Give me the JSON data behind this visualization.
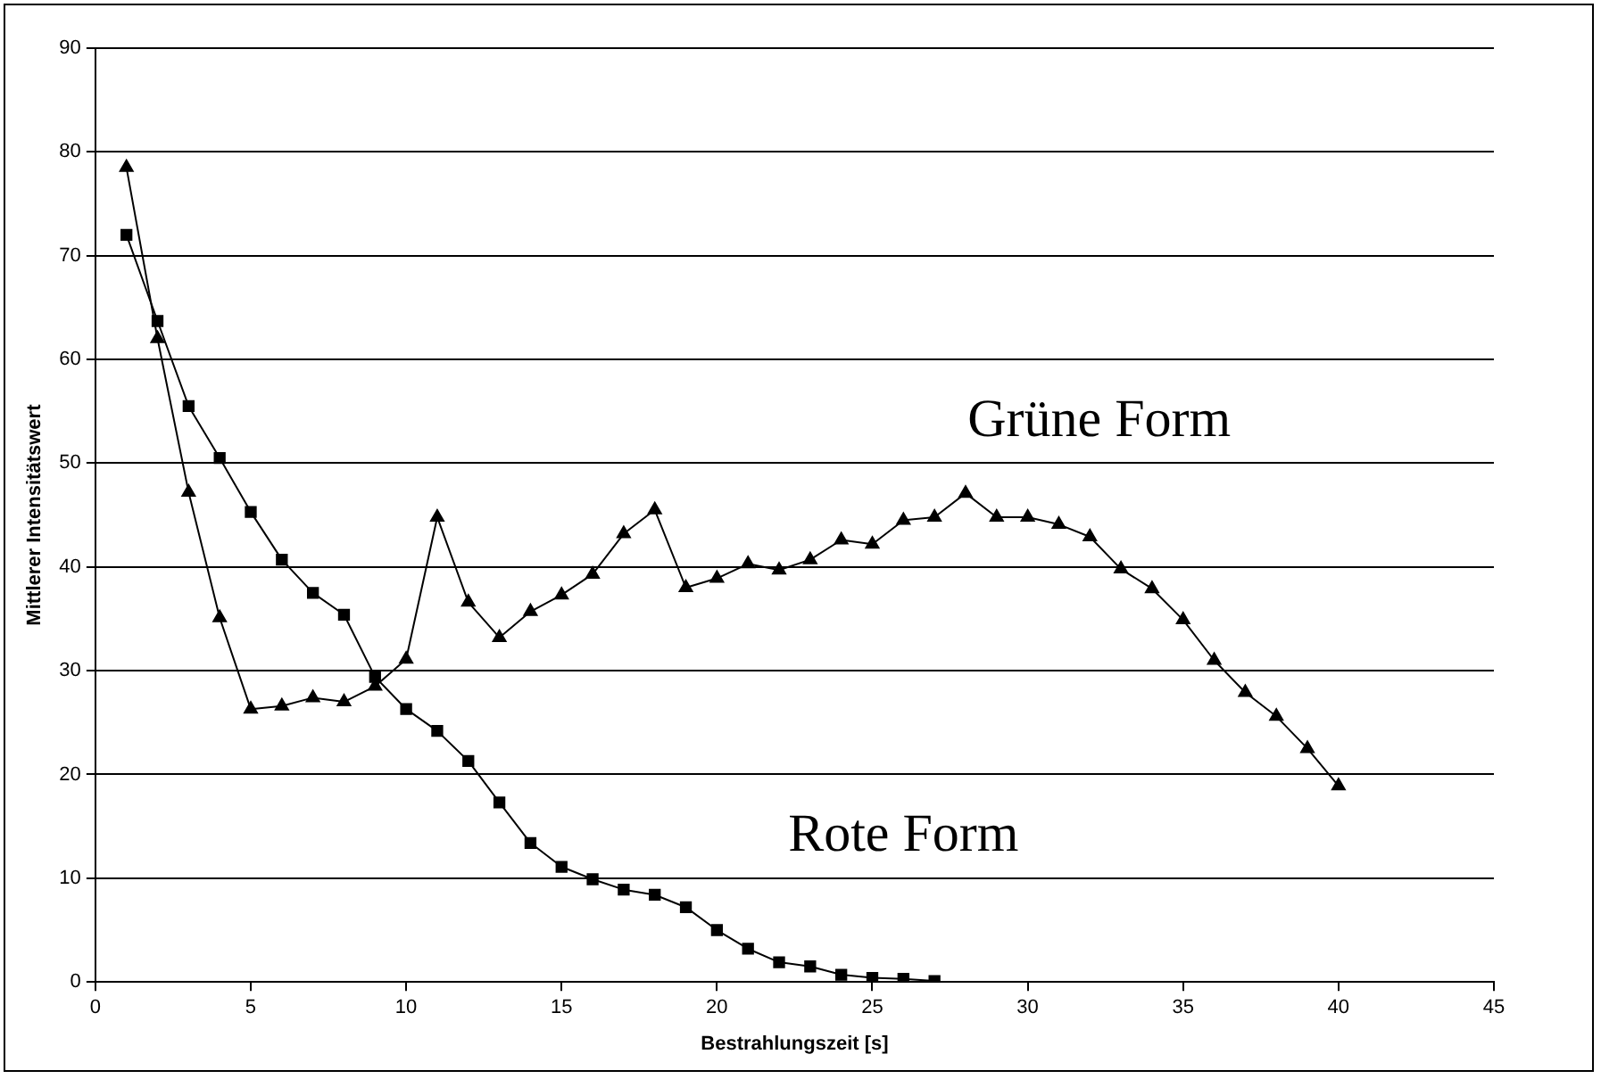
{
  "chart_data": {
    "type": "line",
    "xlabel": "Bestrahlungszeit [s]",
    "ylabel": "Mittlerer Intensitätswert",
    "xlim": [
      0,
      45
    ],
    "xticks": [
      0,
      5,
      10,
      15,
      20,
      25,
      30,
      35,
      40,
      45
    ],
    "ylim": [
      0,
      90
    ],
    "yticks": [
      0,
      10,
      20,
      30,
      40,
      50,
      60,
      70,
      80,
      90
    ],
    "grid": "y",
    "legend": false,
    "series": [
      {
        "name": "Rote Form",
        "color": "#000000",
        "marker": "square",
        "x": [
          1,
          2,
          3,
          4,
          5,
          6,
          7,
          8,
          9,
          10,
          11,
          12,
          13,
          14,
          15,
          16,
          17,
          18,
          19,
          20,
          21,
          22,
          23,
          24,
          25,
          26,
          27
        ],
        "values": [
          72,
          63.7,
          55.5,
          50.5,
          45.3,
          40.7,
          37.5,
          35.4,
          29.4,
          26.3,
          24.2,
          21.3,
          17.3,
          13.4,
          11.1,
          9.9,
          8.9,
          8.4,
          7.2,
          5.0,
          3.2,
          1.9,
          1.5,
          0.7,
          0.4,
          0.3,
          0.1
        ]
      },
      {
        "name": "Grüne Form",
        "color": "#000000",
        "marker": "triangle",
        "x": [
          1,
          2,
          3,
          4,
          5,
          6,
          7,
          8,
          9,
          10,
          11,
          12,
          13,
          14,
          15,
          16,
          17,
          18,
          19,
          20,
          21,
          22,
          23,
          24,
          25,
          26,
          27,
          28,
          29,
          30,
          31,
          32,
          33,
          34,
          35,
          36,
          37,
          38,
          39,
          40
        ],
        "values": [
          78.5,
          62,
          47.2,
          35.1,
          26.3,
          26.6,
          27.4,
          27.0,
          28.5,
          31.1,
          44.8,
          36.6,
          33.2,
          35.7,
          37.3,
          39.3,
          43.2,
          45.5,
          38.0,
          38.9,
          40.3,
          39.7,
          40.7,
          42.6,
          42.2,
          44.5,
          44.8,
          47.1,
          44.8,
          44.8,
          44.1,
          42.9,
          39.8,
          37.9,
          34.9,
          31.0,
          27.9,
          25.6,
          22.5,
          18.9
        ]
      }
    ]
  }
}
